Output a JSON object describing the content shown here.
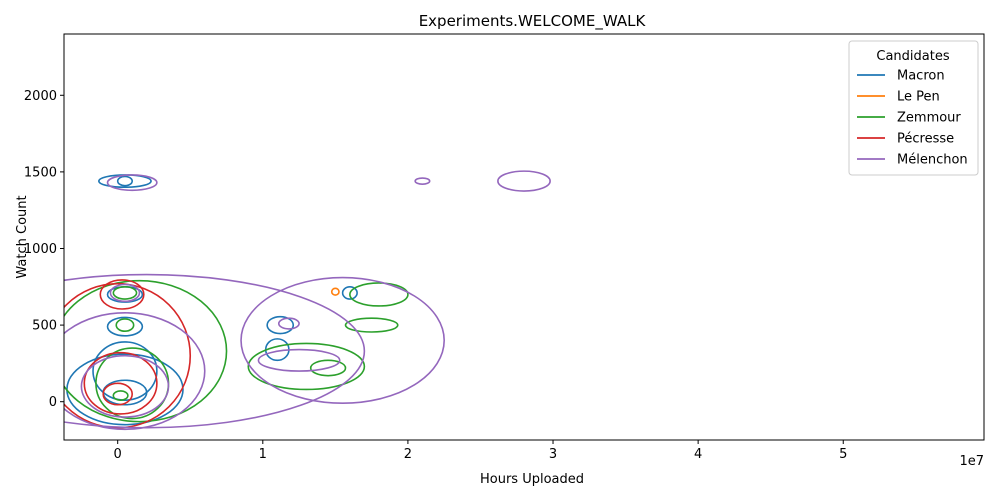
{
  "chart_data": {
    "type": "contour",
    "title": "Experiments.WELCOME_WALK",
    "xlabel": "Hours Uploaded",
    "ylabel": "Watch Count",
    "x_offset_label": "1e7",
    "xlim": [
      -0.37,
      5.97
    ],
    "ylim": [
      -250,
      2400
    ],
    "xticks": [
      0,
      1,
      2,
      3,
      4,
      5
    ],
    "yticks": [
      0,
      500,
      1000,
      1500,
      2000
    ],
    "grid": false,
    "legend": {
      "title": "Candidates",
      "placement": "top-right"
    },
    "series": [
      {
        "name": "Macron",
        "color": "#1f77b4",
        "contours": [
          {
            "cx": 0.05,
            "cy": 1440,
            "rx": 0.05,
            "ry": 30
          },
          {
            "cx": 0.05,
            "cy": 1440,
            "rx": 0.18,
            "ry": 40
          },
          {
            "cx": 0.05,
            "cy": 700,
            "rx": 0.12,
            "ry": 50
          },
          {
            "cx": 0.05,
            "cy": 490,
            "rx": 0.12,
            "ry": 60
          },
          {
            "cx": 0.05,
            "cy": 200,
            "rx": 0.22,
            "ry": 190
          },
          {
            "cx": 0.05,
            "cy": 80,
            "rx": 0.4,
            "ry": 230
          },
          {
            "cx": 0.05,
            "cy": 60,
            "rx": 0.15,
            "ry": 80
          },
          {
            "cx": 1.12,
            "cy": 500,
            "rx": 0.09,
            "ry": 55
          },
          {
            "cx": 1.1,
            "cy": 340,
            "rx": 0.08,
            "ry": 70
          },
          {
            "cx": 1.6,
            "cy": 710,
            "rx": 0.05,
            "ry": 40
          }
        ]
      },
      {
        "name": "Le Pen",
        "color": "#ff7f0e",
        "contours": [
          {
            "cx": 1.5,
            "cy": 718,
            "rx": 0.025,
            "ry": 22
          }
        ]
      },
      {
        "name": "Zemmour",
        "color": "#2ca02c",
        "contours": [
          {
            "cx": 0.02,
            "cy": 40,
            "rx": 0.05,
            "ry": 30
          },
          {
            "cx": 0.05,
            "cy": 500,
            "rx": 0.06,
            "ry": 40
          },
          {
            "cx": 0.05,
            "cy": 710,
            "rx": 0.08,
            "ry": 40
          },
          {
            "cx": 0.1,
            "cy": 120,
            "rx": 0.25,
            "ry": 230
          },
          {
            "cx": 0.15,
            "cy": 330,
            "rx": 0.6,
            "ry": 460
          },
          {
            "cx": 1.3,
            "cy": 230,
            "rx": 0.4,
            "ry": 150
          },
          {
            "cx": 1.45,
            "cy": 220,
            "rx": 0.12,
            "ry": 50
          },
          {
            "cx": 1.8,
            "cy": 700,
            "rx": 0.2,
            "ry": 75
          },
          {
            "cx": 1.75,
            "cy": 500,
            "rx": 0.18,
            "ry": 45
          }
        ]
      },
      {
        "name": "Pécresse",
        "color": "#d62728",
        "contours": [
          {
            "cx": 0.0,
            "cy": 50,
            "rx": 0.1,
            "ry": 70
          },
          {
            "cx": 0.02,
            "cy": 120,
            "rx": 0.25,
            "ry": 200
          },
          {
            "cx": 0.0,
            "cy": 300,
            "rx": 0.5,
            "ry": 470
          },
          {
            "cx": 0.03,
            "cy": 700,
            "rx": 0.15,
            "ry": 95
          }
        ]
      },
      {
        "name": "Mélenchon",
        "color": "#9467bd",
        "contours": [
          {
            "cx": 0.1,
            "cy": 1430,
            "rx": 0.17,
            "ry": 50
          },
          {
            "cx": 0.05,
            "cy": 710,
            "rx": 0.1,
            "ry": 55
          },
          {
            "cx": 0.05,
            "cy": 100,
            "rx": 0.3,
            "ry": 200
          },
          {
            "cx": 0.05,
            "cy": 200,
            "rx": 0.55,
            "ry": 380
          },
          {
            "cx": 0.2,
            "cy": 330,
            "rx": 1.5,
            "ry": 500
          },
          {
            "cx": 1.55,
            "cy": 400,
            "rx": 0.7,
            "ry": 410
          },
          {
            "cx": 1.25,
            "cy": 270,
            "rx": 0.28,
            "ry": 70
          },
          {
            "cx": 1.18,
            "cy": 510,
            "rx": 0.07,
            "ry": 35
          },
          {
            "cx": 2.1,
            "cy": 1440,
            "rx": 0.05,
            "ry": 20
          },
          {
            "cx": 2.8,
            "cy": 1440,
            "rx": 0.18,
            "ry": 65
          }
        ]
      }
    ]
  }
}
